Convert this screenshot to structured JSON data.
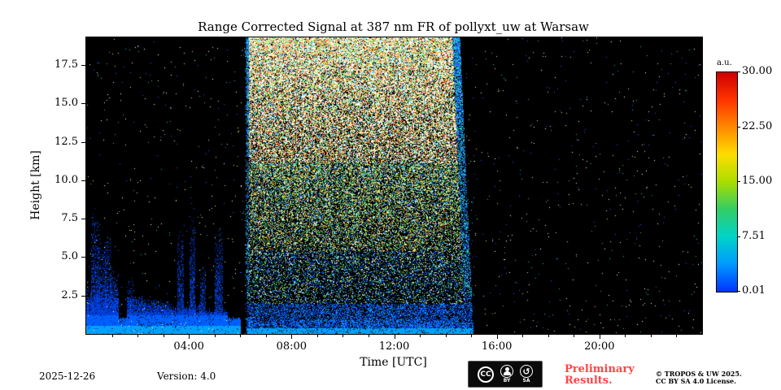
{
  "title": "Range Corrected Signal at 387 nm FR of pollyxt_uw at Warsaw",
  "xlabel": "Time [UTC]",
  "ylabel": "Height [km]",
  "x_ticks": [
    {
      "hour": 4,
      "label": "04:00"
    },
    {
      "hour": 8,
      "label": "08:00"
    },
    {
      "hour": 12,
      "label": "12:00"
    },
    {
      "hour": 16,
      "label": "16:00"
    },
    {
      "hour": 20,
      "label": "20:00"
    }
  ],
  "y_ticks": [
    {
      "km": 2.5,
      "label": "2.5"
    },
    {
      "km": 5.0,
      "label": "5.0"
    },
    {
      "km": 7.5,
      "label": "7.5"
    },
    {
      "km": 10.0,
      "label": "10.0"
    },
    {
      "km": 12.5,
      "label": "12.5"
    },
    {
      "km": 15.0,
      "label": "15.0"
    },
    {
      "km": 17.5,
      "label": "17.5"
    }
  ],
  "colorbar": {
    "label": "a.u.",
    "ticks": [
      "30.00",
      "22.50",
      "15.00",
      "7.51",
      "0.01"
    ],
    "colors": [
      "#0033ff",
      "#0099ff",
      "#00d4c8",
      "#33cc66",
      "#aadd00",
      "#ffdd00",
      "#ff8800",
      "#ff3300",
      "#cc0000"
    ]
  },
  "footer": {
    "date": "2025-12-26",
    "version": "Version: 4.0",
    "cc": "CC",
    "by": "BY",
    "sa": "SA",
    "preliminary1": "Preliminary",
    "preliminary2": "Results.",
    "copyright1": "© TROPOS & UW 2025.",
    "copyright2": "CC BY SA 4.0 License."
  },
  "chart_data": {
    "type": "heatmap",
    "title": "Range Corrected Signal at 387 nm FR of pollyxt_uw at Warsaw",
    "xlabel": "Time [UTC]",
    "ylabel": "Height [km]",
    "x_hours": [
      0,
      24
    ],
    "y_km": [
      0,
      19.3
    ],
    "value_range_au": [
      0.01,
      30.0
    ],
    "seed": 42,
    "sparse_dot_count": 1500,
    "noise_band": {
      "start_hour": 6.17,
      "end_hour_top": 14.55,
      "end_hour_bottom": 15.08
    },
    "boundary_layer": [
      {
        "start": 0.0,
        "end": 1.25,
        "top_km": 2.6
      },
      {
        "start": 1.25,
        "end": 1.6,
        "top_km": 1.0
      },
      {
        "start": 1.6,
        "end": 2.2,
        "top_km": 2.4
      },
      {
        "start": 2.2,
        "end": 3.2,
        "top_km": 2.1
      },
      {
        "start": 3.2,
        "end": 4.5,
        "top_km": 1.8
      },
      {
        "start": 4.5,
        "end": 5.5,
        "top_km": 1.5
      },
      {
        "start": 5.5,
        "end": 6.0,
        "top_km": 1.0
      }
    ],
    "plumes": [
      {
        "start": 0.0,
        "end": 0.18,
        "top_km": 3.2
      },
      {
        "start": 0.18,
        "end": 0.5,
        "top_km": 7.4
      },
      {
        "start": 0.5,
        "end": 0.72,
        "top_km": 5.6
      },
      {
        "start": 0.72,
        "end": 0.95,
        "top_km": 6.6
      },
      {
        "start": 0.95,
        "end": 1.25,
        "top_km": 4.0
      },
      {
        "start": 1.6,
        "end": 1.85,
        "top_km": 3.4
      },
      {
        "start": 3.55,
        "end": 3.78,
        "top_km": 6.4
      },
      {
        "start": 4.02,
        "end": 4.22,
        "top_km": 7.0
      },
      {
        "start": 4.45,
        "end": 4.62,
        "top_km": 4.5
      },
      {
        "start": 5.0,
        "end": 5.28,
        "top_km": 6.7
      }
    ],
    "palettes": {
      "high": [
        "#ffffff",
        "#ffffff",
        "#ffffff",
        "#ffe860",
        "#ff9830",
        "#ff5020",
        "#70e040",
        "#30c8ff",
        "#e0ffe0"
      ],
      "mid": [
        "#ffffff",
        "#c0e830",
        "#40d860",
        "#20b8f0",
        "#3070ff",
        "#ff9830",
        "#90e8a0",
        "#ffe860"
      ],
      "low": [
        "#2058ff",
        "#1048e8",
        "#00a0ff",
        "#30c880",
        "#ffffff",
        "#c8e830"
      ],
      "fringe": [
        "#2058ff",
        "#00a0ff",
        "#30c8e0",
        "#1040d0",
        "#40e0c0"
      ],
      "band_low": [
        "#1050ff",
        "#0040e0",
        "#00a0ff",
        "#2070ff"
      ],
      "plume": [
        "#0030b8",
        "#0040d8",
        "#0058ff",
        "#001a66",
        "#0030b8"
      ],
      "layer": [
        "#00a2ff",
        "#0060ff",
        "#0040dd"
      ],
      "sparse": [
        "#ffffff",
        "#2858ff",
        "#28c8a0",
        "#e6e678"
      ]
    }
  }
}
